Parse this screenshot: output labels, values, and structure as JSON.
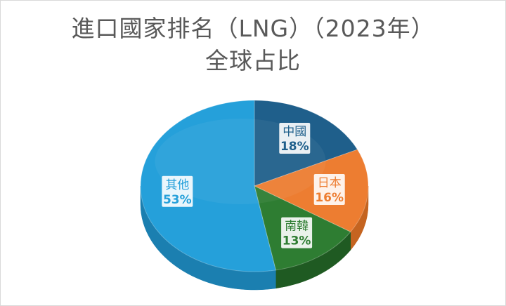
{
  "chart_data": {
    "type": "pie",
    "title_line1": "進口國家排名（LNG）（2023年）",
    "title_line2": "全球占比",
    "slices": [
      {
        "label": "中國",
        "value": 18,
        "display": "18%",
        "color": "#1f5f8b",
        "side": "#174a6d",
        "text_color": "#1f5f8b"
      },
      {
        "label": "日本",
        "value": 16,
        "display": "16%",
        "color": "#ed7d31",
        "side": "#c56420",
        "text_color": "#ed7d31"
      },
      {
        "label": "南韓",
        "value": 13,
        "display": "13%",
        "color": "#2e7d32",
        "side": "#1f5a22",
        "text_color": "#2e7d32"
      },
      {
        "label": "其他",
        "value": 53,
        "display": "53%",
        "color": "#25a0da",
        "side": "#1b7fb0",
        "text_color": "#25a0da"
      }
    ],
    "legend": "none",
    "style": "3d-pie"
  }
}
